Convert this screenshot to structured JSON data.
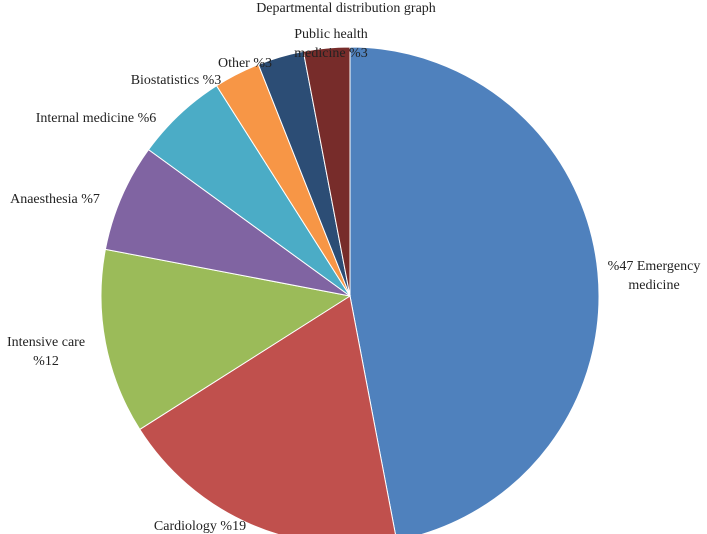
{
  "chart_data": {
    "type": "pie",
    "title": "Departmental distribution graph",
    "start": "12 o'clock",
    "direction": "clockwise",
    "slices": [
      {
        "name": "Emergency medicine",
        "value": 47,
        "label": [
          "%47 Emergency",
          "medicine"
        ],
        "color": "#4f81bd"
      },
      {
        "name": "Cardiology",
        "value": 19,
        "label": [
          "Cardiology %19"
        ],
        "color": "#c0504d"
      },
      {
        "name": "Intensive care",
        "value": 12,
        "label": [
          "Intensive care",
          "%12"
        ],
        "color": "#9bbb59"
      },
      {
        "name": "Anaesthesia",
        "value": 7,
        "label": [
          "Anaesthesia %7"
        ],
        "color": "#8064a2"
      },
      {
        "name": "Internal medicine",
        "value": 6,
        "label": [
          "Internal medicine %6"
        ],
        "color": "#4bacc6"
      },
      {
        "name": "Biostatistics",
        "value": 3,
        "label": [
          "Biostatistics %3"
        ],
        "color": "#f79646"
      },
      {
        "name": "Other",
        "value": 3,
        "label": [
          "Other %3"
        ],
        "color": "#2c4d75"
      },
      {
        "name": "Public health medicine",
        "value": 3,
        "label": [
          "Public health",
          "medicine %3"
        ],
        "color": "#772c2a"
      }
    ]
  }
}
